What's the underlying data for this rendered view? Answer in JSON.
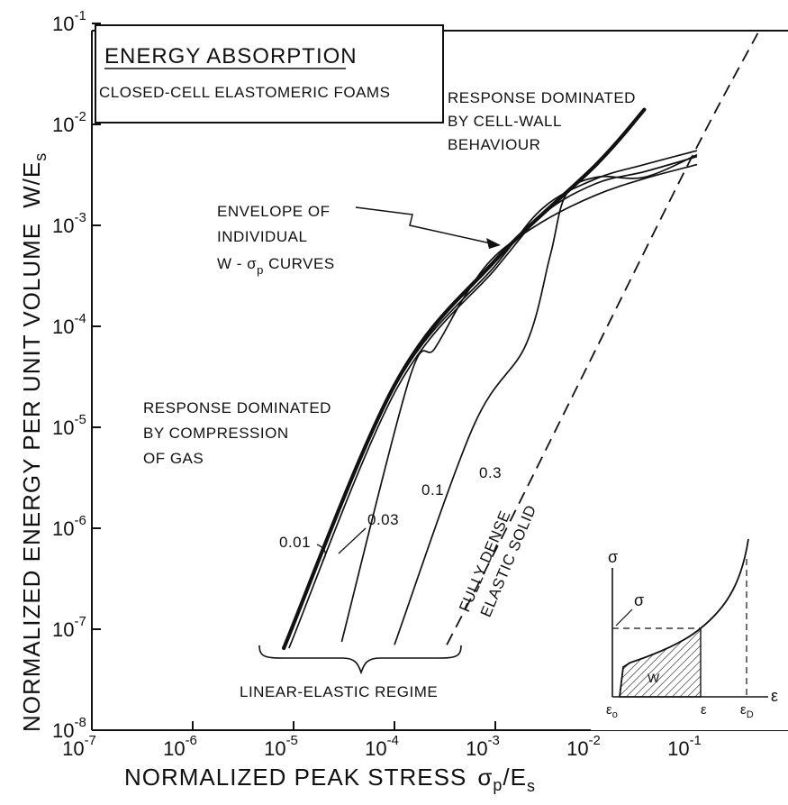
{
  "chart_data": {
    "type": "line",
    "title": "ENERGY ABSORPTION",
    "subtitle": "CLOSED-CELL ELASTOMERIC FOAMS",
    "xlabel": "NORMALIZED PEAK STRESS",
    "xlabel_symbol": "σ",
    "xlabel_sub": "p",
    "xlabel_denom": "/E",
    "xlabel_denom_sub": "s",
    "ylabel": "NORMALIZED ENERGY PER UNIT VOLUME",
    "ylabel_symbol": "W",
    "ylabel_denom": "/E",
    "ylabel_denom_sub": "s",
    "x_scale": "log",
    "y_scale": "log",
    "xlim": [
      1e-07,
      1
    ],
    "ylim": [
      1e-08,
      0.1
    ],
    "x_ticks": [
      {
        "base": "10",
        "exp": "-7",
        "value": 1e-07
      },
      {
        "base": "10",
        "exp": "-6",
        "value": 1e-06
      },
      {
        "base": "10",
        "exp": "-5",
        "value": 1e-05
      },
      {
        "base": "10",
        "exp": "-4",
        "value": 0.0001
      },
      {
        "base": "10",
        "exp": "-3",
        "value": 0.001
      },
      {
        "base": "10",
        "exp": "-2",
        "value": 0.01
      },
      {
        "base": "10",
        "exp": "-1",
        "value": 0.1
      }
    ],
    "y_ticks": [
      {
        "base": "10",
        "exp": "-8",
        "value": 1e-08
      },
      {
        "base": "10",
        "exp": "-7",
        "value": 1e-07
      },
      {
        "base": "10",
        "exp": "-6",
        "value": 1e-06
      },
      {
        "base": "10",
        "exp": "-5",
        "value": 1e-05
      },
      {
        "base": "10",
        "exp": "-4",
        "value": 0.0001
      },
      {
        "base": "10",
        "exp": "-3",
        "value": 0.001
      },
      {
        "base": "10",
        "exp": "-2",
        "value": 0.01
      },
      {
        "base": "10",
        "exp": "-1",
        "value": 0.1
      }
    ],
    "grid": false,
    "series": [
      {
        "name": "0.01",
        "points": [
          [
            8e-06,
            6.5e-08
          ],
          [
            0.0001,
            2.5e-05
          ],
          [
            0.001,
            0.0004
          ],
          [
            0.003,
            0.0015
          ],
          [
            0.01,
            0.0029
          ],
          [
            0.03,
            0.004
          ],
          [
            0.1,
            0.0055
          ]
        ]
      },
      {
        "name": "0.03",
        "points": [
          [
            9e-06,
            6.5e-08
          ],
          [
            0.000105,
            2.4e-05
          ],
          [
            0.001,
            0.00037
          ],
          [
            0.003,
            0.0013
          ],
          [
            0.01,
            0.0026
          ],
          [
            0.03,
            0.0034
          ],
          [
            0.1,
            0.0048
          ]
        ]
      },
      {
        "name": "0.1",
        "points": [
          [
            3e-05,
            7.5e-08
          ],
          [
            0.00014,
            3e-05
          ],
          [
            0.00025,
            6e-05
          ],
          [
            0.0005,
            0.0002
          ],
          [
            0.001,
            0.0005
          ],
          [
            0.003,
            0.0011
          ],
          [
            0.01,
            0.002
          ],
          [
            0.03,
            0.0029
          ],
          [
            0.1,
            0.004
          ]
        ]
      },
      {
        "name": "0.3",
        "points": [
          [
            0.0001,
            7e-08
          ],
          [
            0.0006,
            1e-05
          ],
          [
            0.002,
            6.5e-05
          ],
          [
            0.0035,
            0.0005
          ],
          [
            0.005,
            0.002
          ],
          [
            0.01,
            0.003
          ],
          [
            0.03,
            0.003
          ],
          [
            0.1,
            0.005
          ]
        ]
      }
    ],
    "envelope": {
      "name": "ENVELOPE OF INDIVIDUAL W - σp CURVES",
      "points": [
        [
          8e-06,
          6.5e-08
        ],
        [
          0.0001,
          2.6e-05
        ],
        [
          0.001,
          0.00045
        ],
        [
          0.01,
          0.004
        ],
        [
          0.03,
          0.014
        ]
      ]
    },
    "fully_dense_line": {
      "name": "FULLY DENSE ELASTIC SOLID",
      "points": [
        [
          0.00033,
          7e-08
        ],
        [
          0.001,
          6e-07
        ],
        [
          0.01,
          6e-05
        ],
        [
          0.1,
          0.006
        ],
        [
          0.4,
          0.08
        ]
      ]
    },
    "annotations": {
      "cell_wall": [
        "RESPONSE DOMINATED",
        "BY CELL-WALL",
        "BEHAVIOUR"
      ],
      "envelope": [
        "ENVELOPE OF",
        "INDIVIDUAL",
        "W - σ",
        "p",
        " CURVES"
      ],
      "gas": [
        "RESPONSE DOMINATED",
        "BY COMPRESSION",
        "OF GAS"
      ],
      "fully_dense": [
        "FULLY DENSE",
        "ELASTIC SOLID"
      ],
      "linear_elastic": "LINEAR-ELASTIC REGIME",
      "curve_labels": [
        "0.01",
        "0.03",
        "0.1",
        "0.3"
      ]
    },
    "inset": {
      "y_axis": "σ",
      "x_axis": "ε",
      "peak_label": "σ",
      "area_label": "W",
      "x_marks": [
        {
          "base": "ε",
          "sub": "o"
        },
        {
          "base": "ε",
          "sub": ""
        },
        {
          "base": "ε",
          "sub": "D"
        }
      ]
    }
  }
}
